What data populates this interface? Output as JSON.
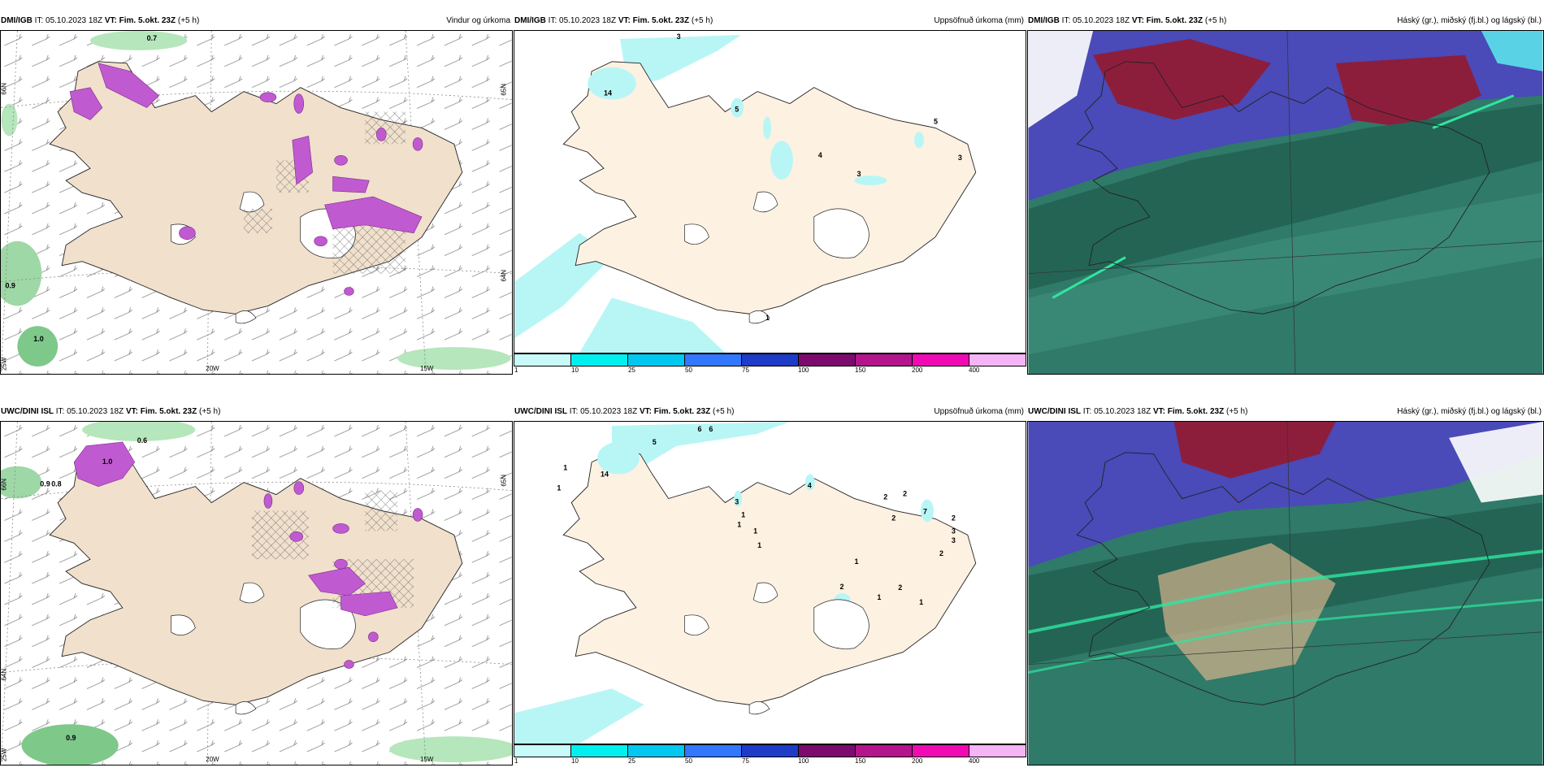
{
  "panels": [
    {
      "id": "top-left",
      "source": "DMI/IGB",
      "it_label": "IT:",
      "it_value": "05.10.2023 18Z",
      "vt_label": "VT:",
      "vt_value": "Fim. 5.okt. 23Z",
      "lead": "(+5 h)",
      "title_right": "Vindur og úrkoma",
      "grid_labels": [
        "66N",
        "65N",
        "64N",
        "25W",
        "20W",
        "15W"
      ],
      "value_labels": [
        "0.7",
        "0.9",
        "1.0"
      ]
    },
    {
      "id": "top-middle",
      "source": "DMI/IGB",
      "it_label": "IT:",
      "it_value": "05.10.2023 18Z",
      "vt_label": "VT:",
      "vt_value": "Fim. 5.okt. 23Z",
      "lead": "(+5 h)",
      "title_right": "Uppsöfnuð úrkoma (mm)",
      "value_labels": [
        "3",
        "14",
        "5",
        "4",
        "3",
        "5",
        "3",
        "1"
      ]
    },
    {
      "id": "top-right",
      "source": "DMI/IGB",
      "it_label": "IT:",
      "it_value": "05.10.2023 18Z",
      "vt_label": "VT:",
      "vt_value": "Fim. 5.okt. 23Z",
      "lead": "(+5 h)",
      "title_right": "Háský (gr.), miðský (fj.bl.) og lágský (bl.)"
    },
    {
      "id": "bottom-left",
      "source": "UWC/DINI ISL",
      "it_label": "IT:",
      "it_value": "05.10.2023 18Z",
      "vt_label": "VT:",
      "vt_value": "Fim. 5.okt. 23Z",
      "lead": "(+5 h)",
      "title_right": "",
      "grid_labels": [
        "66N",
        "65N",
        "64N",
        "25W",
        "20W",
        "15W"
      ],
      "value_labels": [
        "0.9",
        "0.8",
        "1.0",
        "0.6",
        "0.9"
      ]
    },
    {
      "id": "bottom-middle",
      "source": "UWC/DINI ISL",
      "it_label": "IT:",
      "it_value": "05.10.2023 18Z",
      "vt_label": "VT:",
      "vt_value": "Fim. 5.okt. 23Z",
      "lead": "(+5 h)",
      "title_right": "Uppsöfnuð úrkoma (mm)",
      "value_labels": [
        "6",
        "6",
        "5",
        "14",
        "1",
        "1",
        "3",
        "4",
        "1",
        "1",
        "1",
        "1",
        "2",
        "2",
        "2",
        "7",
        "2",
        "3",
        "3",
        "2",
        "1",
        "2",
        "1",
        "2",
        "1"
      ]
    },
    {
      "id": "bottom-right",
      "source": "UWC/DINI ISL",
      "it_label": "IT:",
      "it_value": "05.10.2023 18Z",
      "vt_label": "VT:",
      "vt_value": "Fim. 5.okt. 23Z",
      "lead": "(+5 h)",
      "title_right": "Háský (gr.), miðský (fj.bl.) og lágský (bl.)"
    }
  ],
  "colorbar": {
    "ticks": [
      "1",
      "10",
      "25",
      "50",
      "75",
      "100",
      "150",
      "200",
      "400"
    ],
    "colors": [
      "#c8fafa",
      "#00f0f0",
      "#00c8f0",
      "#3278ff",
      "#1e3cc8",
      "#7d0a6e",
      "#b4148c",
      "#f00ab4",
      "#f5b4f5"
    ]
  },
  "colors": {
    "land": "#f0e0cc",
    "land_light": "#fdf1e2",
    "sea": "#ffffff",
    "precip_purple": "#b45ac8",
    "precip_green": "#7ad28c",
    "cyan_precip": "#b8f6f6",
    "cloud_high": "#8c1e3c",
    "cloud_mid": "#5050c8",
    "cloud_low": "#1e6e5a"
  },
  "icons": {
    "wind_barb": "wind-barb-icon",
    "hatch": "hatch-pattern-icon"
  }
}
